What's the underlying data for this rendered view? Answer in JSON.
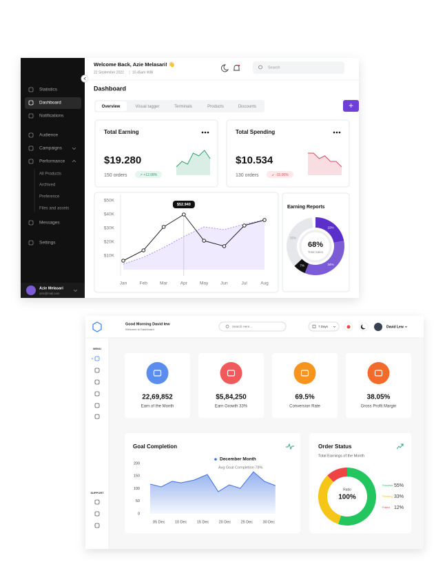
{
  "dashboard_1": {
    "sidebar": {
      "items": [
        "Statistics",
        "Dashboard",
        "Notifications",
        "Audience",
        "Campaigns",
        "Performance",
        "All Products",
        "Archived",
        "Preference",
        "Files and assets",
        "Messages",
        "Settings"
      ],
      "user_name": "Azie Melasari",
      "user_email": "azie@mail.com"
    },
    "header": {
      "greeting": "Welcome Back, Azie Melasari! 👋",
      "date": "22 September 2022",
      "time": "10,45am WIB",
      "search": "Search"
    },
    "page_title": "Dashboard",
    "tabs": [
      "Overview",
      "Visual tagger",
      "Terminals",
      "Products",
      "Discounts"
    ],
    "add_button": "+",
    "cards": [
      {
        "title": "Total Earning",
        "amount": "$19.280",
        "orders": "150 orders",
        "change": "↗ +12.08%",
        "sparkline": {
          "type": "line",
          "values": [
            3,
            5,
            4,
            8,
            7,
            9,
            6
          ],
          "ylim": [
            0,
            10
          ],
          "color": "#2e9e6b",
          "fill": true
        }
      },
      {
        "title": "Total Spending",
        "amount": "$10.534",
        "orders": "130 orders",
        "change": "↙ -15.06%",
        "sparkline": {
          "type": "line",
          "values": [
            8,
            8,
            6,
            7,
            5,
            5,
            3
          ],
          "ylim": [
            0,
            10
          ],
          "color": "#d9485f",
          "fill": true
        }
      }
    ],
    "sales_chart": {
      "type": "line",
      "categories": [
        "Jan",
        "Feb",
        "Mar",
        "Apr",
        "May",
        "Jun",
        "Jul",
        "Aug"
      ],
      "series": [
        {
          "color": "#222222",
          "values": [
            6500,
            14000,
            31000,
            40000,
            21000,
            17000,
            32000,
            36000
          ]
        },
        {
          "color": "#a78bfa",
          "values": [
            4000,
            9000,
            16000,
            24000,
            31000,
            29000,
            33000,
            36000
          ],
          "fill": true
        }
      ],
      "ylim": [
        0,
        55000
      ],
      "yticks": [
        {
          "value": 10000,
          "label": "$10K"
        },
        {
          "value": 20000,
          "label": "$20K"
        },
        {
          "value": 30000,
          "label": "$30K"
        },
        {
          "value": 40000,
          "label": "$40K"
        },
        {
          "value": 50000,
          "label": "$50K"
        }
      ],
      "grid": false,
      "annotation": "$52.940"
    },
    "earning_reports": {
      "type": "pie",
      "title": "Earning Reports",
      "center_value": "68%",
      "center_label": "Total Sales",
      "values": [
        22,
        34,
        7,
        35
      ],
      "value_labels": [
        "22%",
        "34%",
        "7%",
        "35%"
      ],
      "colors": [
        "#5b2fc9",
        "#7c5cd6",
        "#111111",
        "#e5e7eb"
      ]
    }
  },
  "dashboard_2": {
    "header": {
      "greeting": "Good Morning David lew",
      "subtitle": "Welcome to Dashboard",
      "search": "Search Here...",
      "period": "7 Days",
      "user": "David Lew"
    },
    "menu_label": "MENU",
    "support_label": "SUPPORT",
    "stats": [
      {
        "value": "22,69,852",
        "label": "Earn of the Month",
        "color": "#5b8def"
      },
      {
        "value": "$5,84,250",
        "label": "Earn Growth 33%",
        "color": "#f05a5a"
      },
      {
        "value": "69.5%",
        "label": "Conversion Rate",
        "color": "#f7941d"
      },
      {
        "value": "38.05%",
        "label": "Gross Profit Margin",
        "color": "#f26b2a"
      }
    ],
    "goal_chart": {
      "type": "area",
      "title": "Goal Completion",
      "legend": "December Month",
      "subtitle": "Avg Goal Completion 78%",
      "x": [
        3,
        5.5,
        8,
        10,
        13,
        16,
        18.5,
        21,
        23.5,
        26.5,
        29,
        31.5
      ],
      "values": [
        118,
        107,
        129,
        123,
        134,
        156,
        88,
        115,
        101,
        167,
        129,
        112
      ],
      "xlim": [
        3,
        32
      ],
      "xticks": [
        {
          "value": 5,
          "label": "05 Dec"
        },
        {
          "value": 10,
          "label": "10 Dec"
        },
        {
          "value": 15,
          "label": "15 Dec"
        },
        {
          "value": 20,
          "label": "20 Dec"
        },
        {
          "value": 25,
          "label": "25 Dec"
        },
        {
          "value": 30,
          "label": "30 Dec"
        }
      ],
      "ylim": [
        0,
        200
      ],
      "yticks": [
        0,
        50,
        100,
        150,
        200
      ],
      "color": "#3b6fe0"
    },
    "order_status": {
      "type": "pie",
      "title": "Order Status",
      "subtitle": "Total Earnings of the Month",
      "center_label": "Ratio",
      "center_value": "100%",
      "categories": [
        "Success",
        "Pending",
        "Failed"
      ],
      "values": [
        55,
        33,
        12
      ],
      "value_labels": [
        "55%",
        "33%",
        "12%"
      ],
      "colors": [
        "#22c55e",
        "#f5c518",
        "#ef4444"
      ]
    }
  }
}
